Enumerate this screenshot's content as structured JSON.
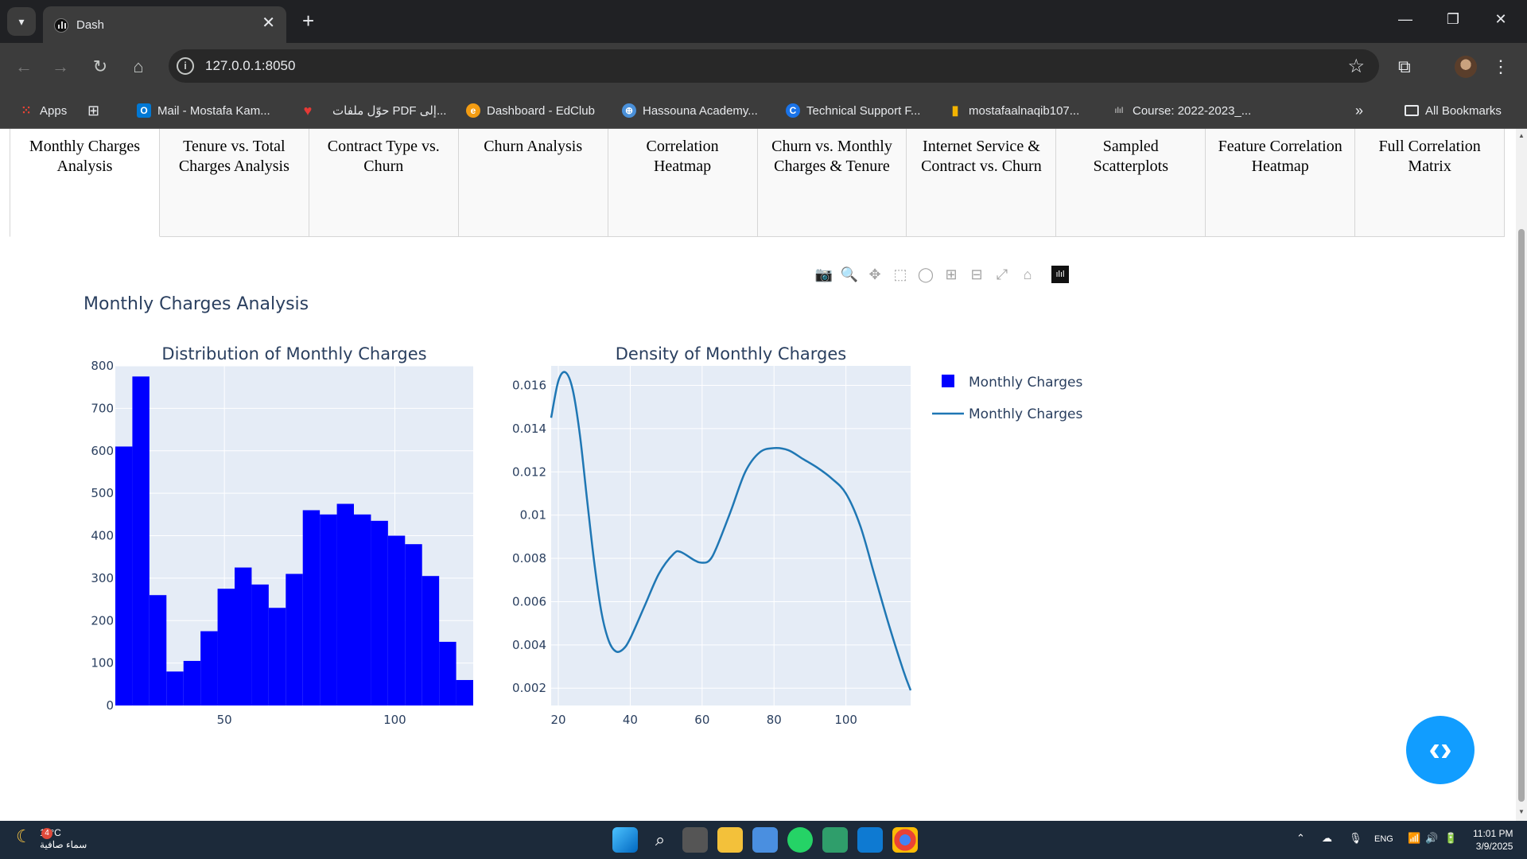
{
  "browser": {
    "tab_title": "Dash",
    "tab_close": "✕",
    "new_tab": "+",
    "url": "127.0.0.1:8050",
    "bookmarks": [
      {
        "label": "Apps",
        "icon": "apps-grid-icon",
        "color": "#ea4335"
      },
      {
        "label": "Mail - Mostafa Kam...",
        "icon": "outlook-icon",
        "color": "#0078d4"
      },
      {
        "label": "حوّل ملفات PDF إلى...",
        "icon": "heart-icon",
        "color": "#e53935"
      },
      {
        "label": "Dashboard - EdClub",
        "icon": "edclub-icon",
        "color": "#f39c12"
      },
      {
        "label": "Hassouna Academy...",
        "icon": "globe-icon",
        "color": "#4a90d9"
      },
      {
        "label": "Technical Support F...",
        "icon": "c-logo-icon",
        "color": "#1a73e8"
      },
      {
        "label": "mostafaalnaqib107...",
        "icon": "bar-chart-icon",
        "color": "#f4b400"
      },
      {
        "label": "Course: 2022-2023_...",
        "icon": "cisco-icon",
        "color": "#888888"
      }
    ],
    "all_bookmarks": "All Bookmarks"
  },
  "dash_tabs": [
    {
      "label": "Monthly Charges Analysis",
      "selected": true
    },
    {
      "label": "Tenure vs. Total Charges Analysis",
      "selected": false
    },
    {
      "label": "Contract Type vs. Churn",
      "selected": false
    },
    {
      "label": "Churn Analysis",
      "selected": false
    },
    {
      "label": "Correlation Heatmap",
      "selected": false
    },
    {
      "label": "Churn vs. Monthly Charges & Tenure",
      "selected": false
    },
    {
      "label": "Internet Service & Contract vs. Churn",
      "selected": false
    },
    {
      "label": "Sampled Scatterplots",
      "selected": false
    },
    {
      "label": "Feature Correlation Heatmap",
      "selected": false
    },
    {
      "label": "Full Correlation Matrix",
      "selected": false
    }
  ],
  "figure": {
    "title": "Monthly Charges Analysis"
  },
  "chart_data": [
    {
      "type": "bar",
      "title": "Distribution of Monthly Charges",
      "xlabel": "",
      "ylabel": "",
      "bin_width": 5,
      "bin_starts": [
        18,
        23,
        28,
        33,
        38,
        43,
        48,
        53,
        58,
        63,
        68,
        73,
        78,
        83,
        88,
        93,
        98,
        103,
        108,
        113,
        118
      ],
      "values": [
        610,
        775,
        260,
        80,
        105,
        175,
        275,
        325,
        285,
        230,
        310,
        460,
        450,
        475,
        450,
        435,
        400,
        380,
        305,
        150,
        60
      ],
      "xlim": [
        18,
        123
      ],
      "ylim": [
        0,
        800
      ],
      "x_ticks": [
        50,
        100
      ],
      "y_ticks": [
        0,
        100,
        200,
        300,
        400,
        500,
        600,
        700,
        800
      ],
      "color": "#0000ff",
      "series_name": "Monthly Charges"
    },
    {
      "type": "line",
      "title": "Density of Monthly Charges",
      "xlabel": "",
      "ylabel": "",
      "x": [
        18,
        20,
        22,
        24,
        26,
        28,
        30,
        32,
        34,
        36,
        38,
        40,
        44,
        48,
        52,
        54,
        58,
        60,
        62,
        64,
        68,
        72,
        76,
        80,
        84,
        88,
        92,
        96,
        100,
        104,
        108,
        112,
        116,
        118
      ],
      "y": [
        0.0145,
        0.0162,
        0.0166,
        0.0158,
        0.0137,
        0.0107,
        0.0078,
        0.0055,
        0.0042,
        0.0037,
        0.0038,
        0.0043,
        0.0058,
        0.0073,
        0.0082,
        0.0083,
        0.0079,
        0.0078,
        0.0079,
        0.0085,
        0.0102,
        0.012,
        0.0129,
        0.0131,
        0.013,
        0.0126,
        0.0122,
        0.0117,
        0.011,
        0.0095,
        0.0072,
        0.0049,
        0.0028,
        0.0019
      ],
      "xlim": [
        18,
        118
      ],
      "ylim": [
        0.0012,
        0.0169
      ],
      "x_ticks": [
        20,
        40,
        60,
        80,
        100
      ],
      "y_ticks": [
        0.002,
        0.004,
        0.006,
        0.008,
        0.01,
        0.012,
        0.014,
        0.016
      ],
      "y_tick_labels": [
        "0.002",
        "0.004",
        "0.006",
        "0.008",
        "0.01",
        "0.012",
        "0.014",
        "0.016"
      ],
      "color": "#1f77b4",
      "series_name": "Monthly Charges"
    }
  ],
  "legend": [
    {
      "label": "Monthly Charges",
      "kind": "square",
      "color": "#0000ff"
    },
    {
      "label": "Monthly Charges",
      "kind": "line",
      "color": "#1f77b4"
    }
  ],
  "modebar": [
    "camera-icon",
    "zoom-icon",
    "pan-icon",
    "box-select-icon",
    "lasso-icon",
    "zoom-in-icon",
    "zoom-out-icon",
    "autoscale-icon",
    "reset-axes-icon",
    "plotly-logo-icon"
  ],
  "taskbar": {
    "temperature": "18°C",
    "weather_text": "سماء صافية",
    "weather_badge": "4",
    "language": "ENG",
    "time": "11:01 PM",
    "date": "3/9/2025"
  }
}
